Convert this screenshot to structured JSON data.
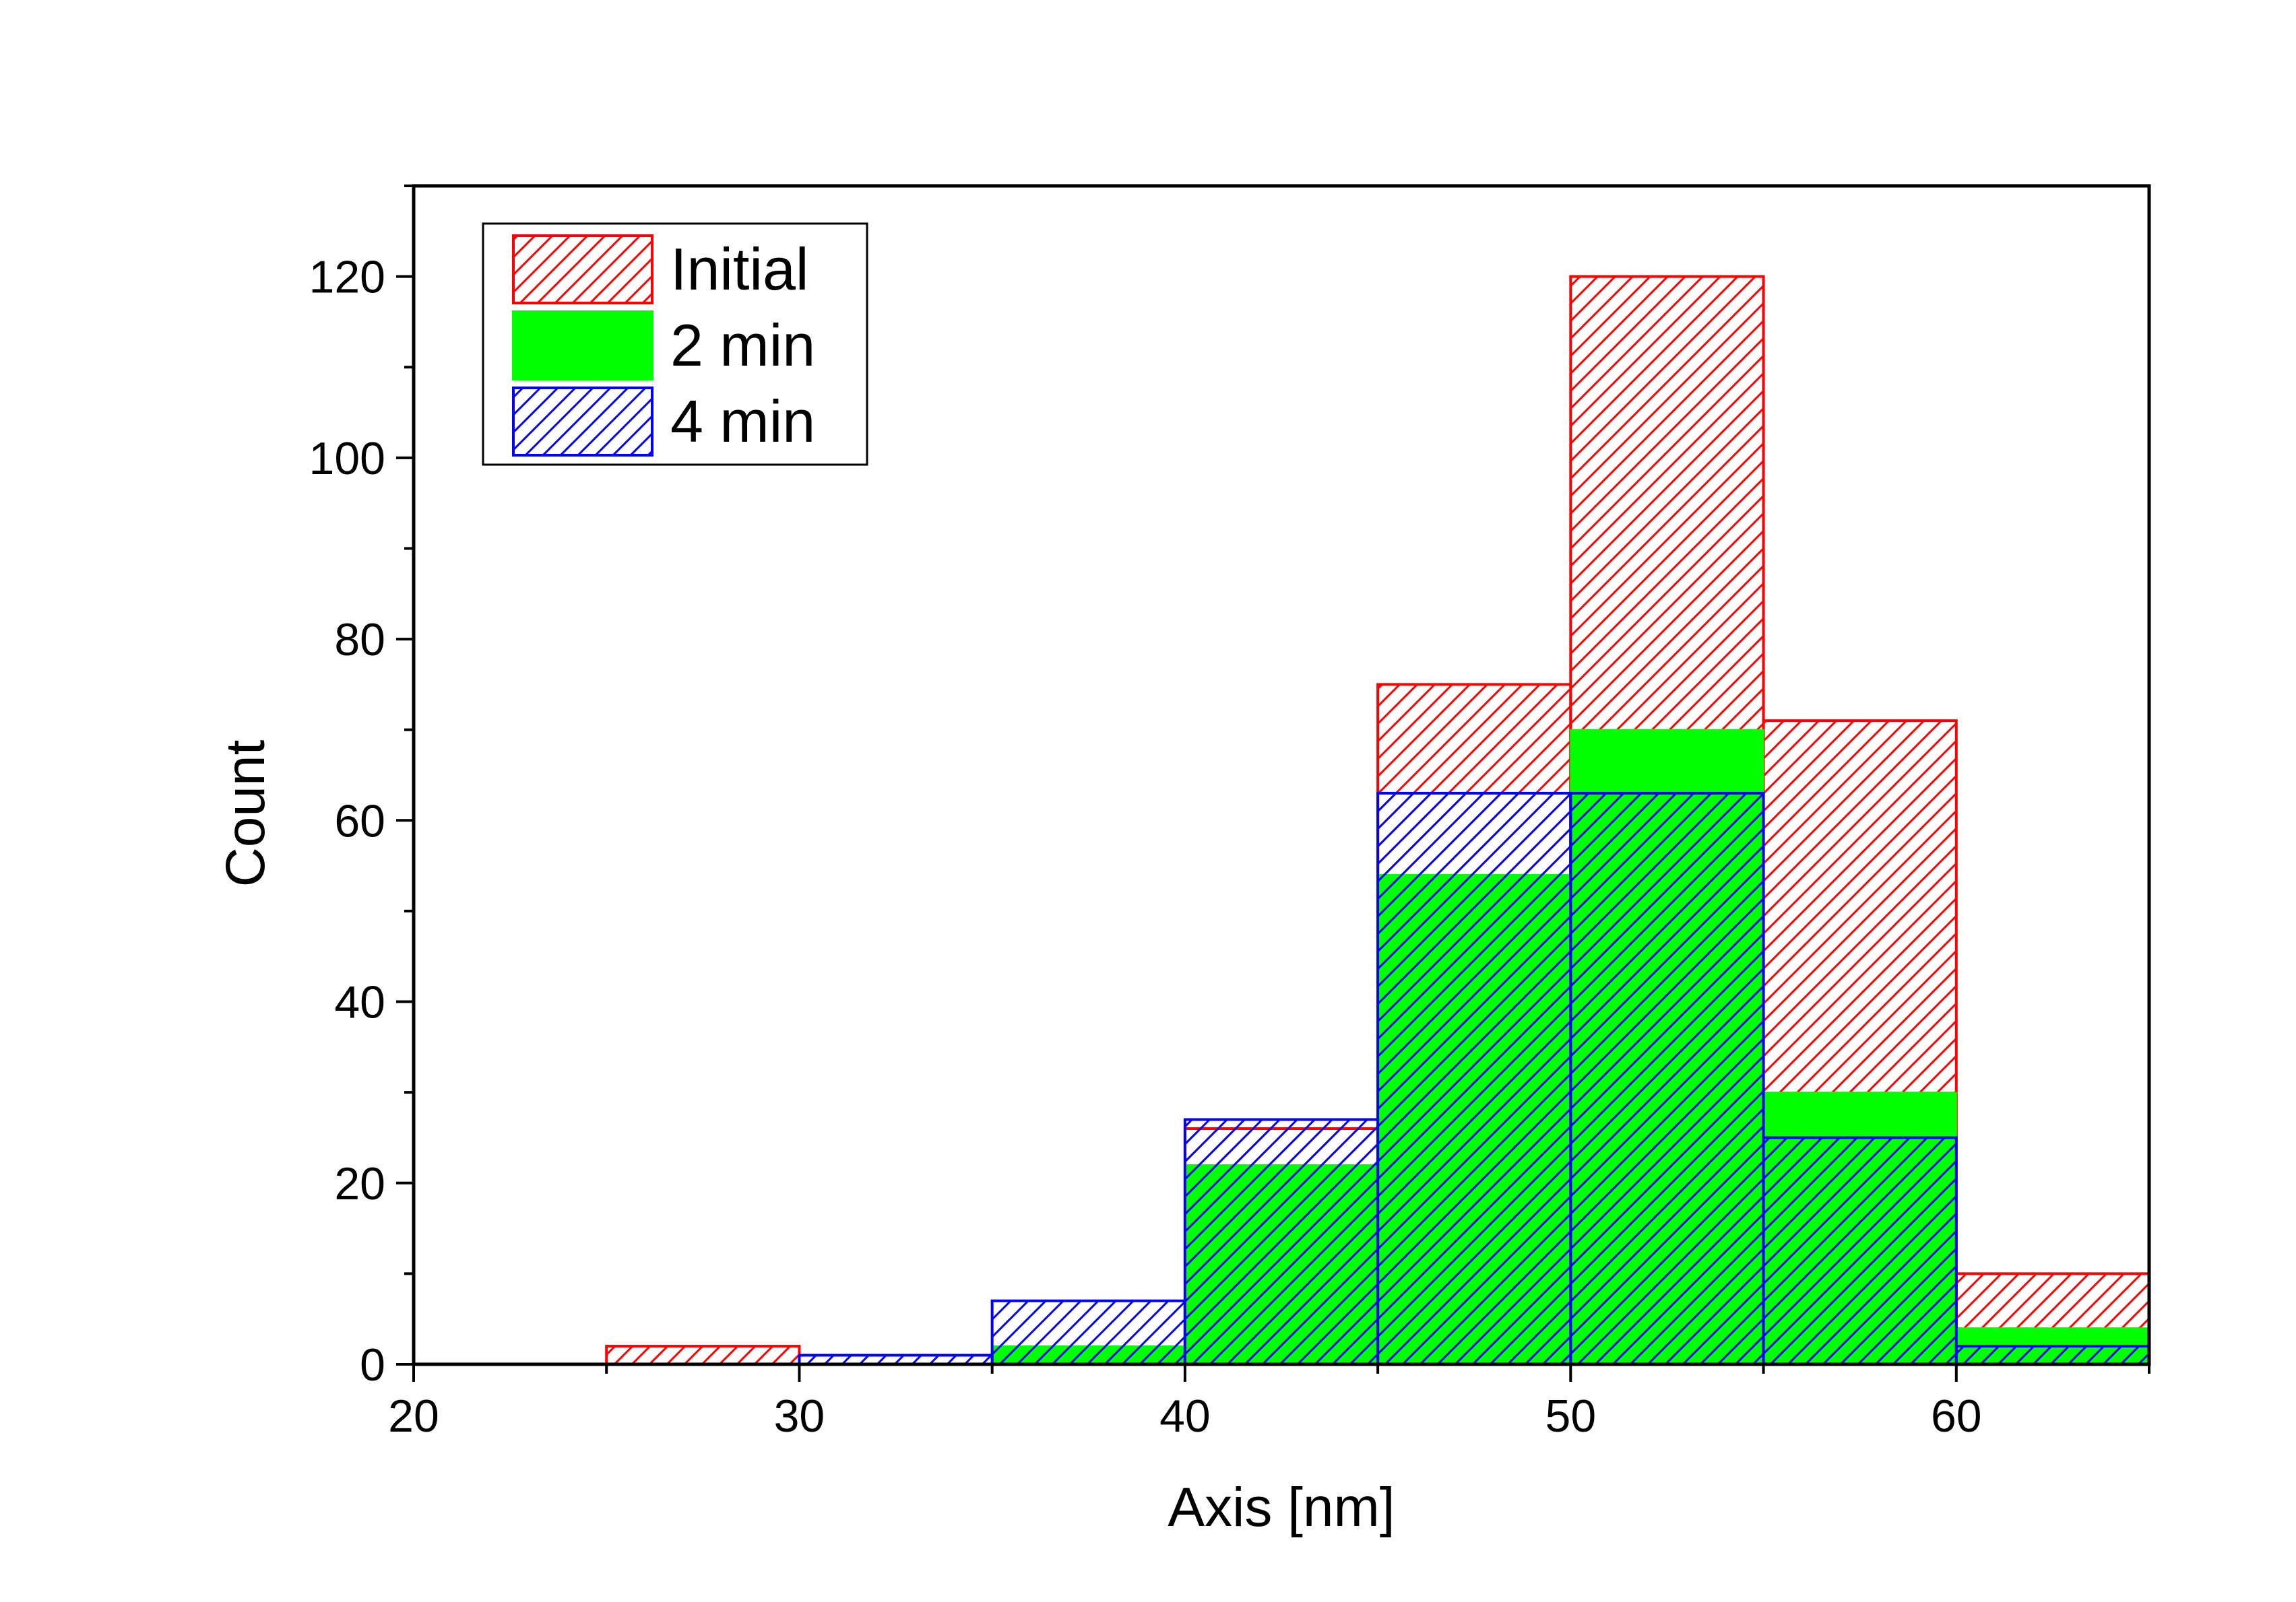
{
  "chart_data": {
    "type": "bar",
    "title": "",
    "xlabel": "Axis [nm]",
    "ylabel": "Count",
    "xlim": [
      20,
      65
    ],
    "ylim": [
      0,
      130
    ],
    "x_ticks": [
      20,
      30,
      40,
      50,
      60
    ],
    "y_ticks": [
      0,
      20,
      40,
      60,
      80,
      100,
      120
    ],
    "bin_width": 5,
    "bin_starts": [
      25,
      30,
      35,
      40,
      45,
      50,
      55,
      60
    ],
    "grid": false,
    "legend_position": "top-left",
    "series": [
      {
        "name": "Initial",
        "values": [
          2,
          0,
          0,
          26,
          75,
          120,
          71,
          10
        ],
        "style": "hatch",
        "color": "#ff0000"
      },
      {
        "name": "2 min",
        "values": [
          0,
          0,
          2,
          22,
          54,
          70,
          30,
          4
        ],
        "style": "solid",
        "color": "#00ff00"
      },
      {
        "name": "4 min",
        "values": [
          0,
          1,
          7,
          27,
          63,
          63,
          25,
          2
        ],
        "style": "hatch",
        "color": "#0000ff"
      }
    ]
  }
}
